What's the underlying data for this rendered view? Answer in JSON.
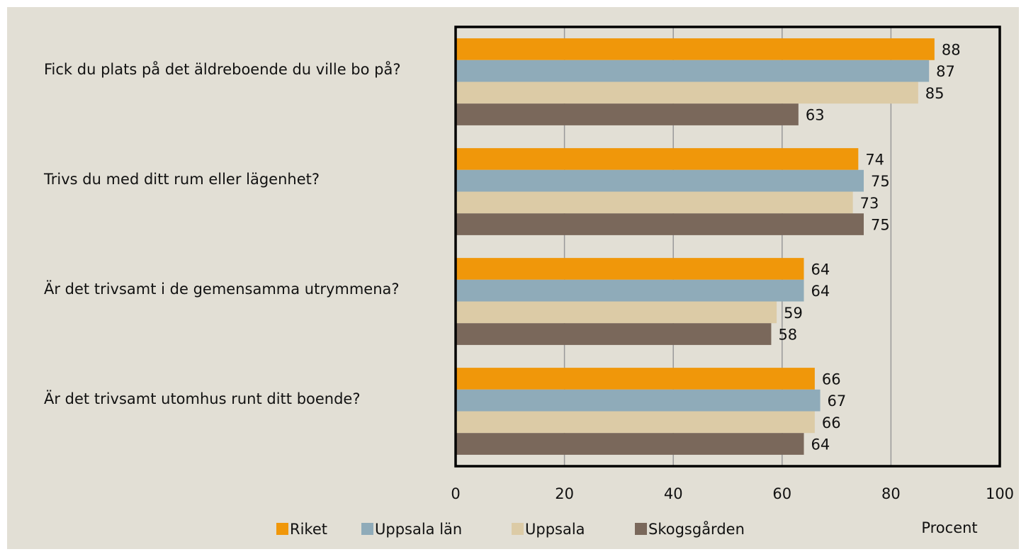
{
  "chart_data": {
    "type": "bar",
    "orientation": "horizontal",
    "categories": [
      "Fick du plats på det äldreboende du ville bo på?",
      "Trivs du med ditt rum eller lägenhet?",
      "Är det trivsamt i de gemensamma utrymmena?",
      "Är det trivsamt utomhus runt ditt boende?"
    ],
    "series": [
      {
        "name": "Riket",
        "color": "#f0970a",
        "values": [
          88,
          74,
          64,
          66
        ]
      },
      {
        "name": "Uppsala län",
        "color": "#8fabb9",
        "values": [
          87,
          75,
          64,
          67
        ]
      },
      {
        "name": "Uppsala",
        "color": "#dccba6",
        "values": [
          85,
          73,
          59,
          66
        ]
      },
      {
        "name": "Skogsgården",
        "color": "#7a685b",
        "values": [
          63,
          75,
          58,
          64
        ]
      }
    ],
    "xlabel": "Procent",
    "xlim": [
      0,
      100
    ],
    "xticks": [
      0,
      20,
      40,
      60,
      80,
      100
    ],
    "grid": true,
    "legend": "bottom"
  }
}
